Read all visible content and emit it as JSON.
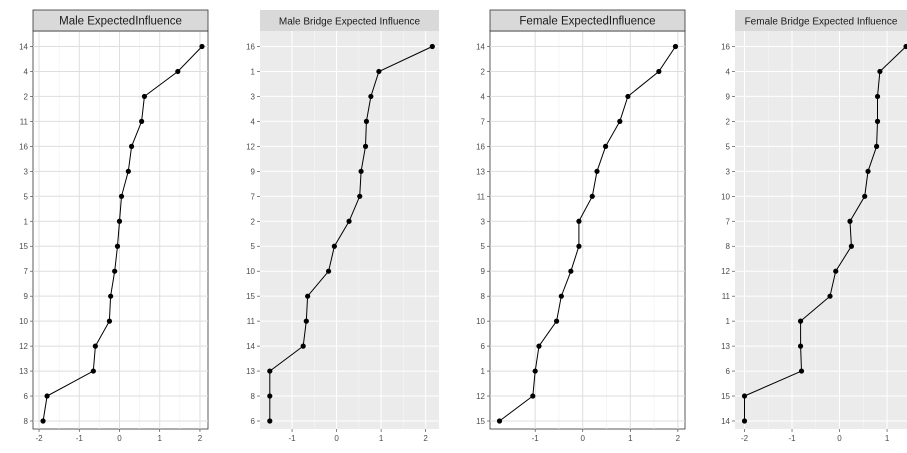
{
  "chart_data": [
    {
      "type": "line",
      "title": "Male ExpectedInfluence",
      "categories": [
        "8",
        "6",
        "13",
        "12",
        "10",
        "9",
        "7",
        "15",
        "1",
        "5",
        "3",
        "16",
        "11",
        "2",
        "4",
        "14"
      ],
      "values": [
        -1.9,
        -1.8,
        -0.65,
        -0.6,
        -0.25,
        -0.22,
        -0.12,
        -0.05,
        0.0,
        0.05,
        0.22,
        0.3,
        0.55,
        0.62,
        1.45,
        2.05
      ],
      "xlim": [
        -2.15,
        2.2
      ],
      "xticks": [
        -2,
        -1,
        0,
        1,
        2
      ],
      "xtick_labels": [
        "-2",
        "-1",
        "0",
        "1",
        "2"
      ],
      "grid": true,
      "panel_bg": "#ffffff",
      "strip_bg": "#d9d9d9"
    },
    {
      "type": "line",
      "title": "Male Bridge Expected Influence",
      "categories": [
        "6",
        "8",
        "13",
        "14",
        "11",
        "15",
        "10",
        "5",
        "2",
        "7",
        "9",
        "12",
        "4",
        "3",
        "1",
        "16"
      ],
      "values": [
        -1.5,
        -1.5,
        -1.5,
        -0.75,
        -0.68,
        -0.65,
        -0.18,
        -0.05,
        0.28,
        0.52,
        0.55,
        0.65,
        0.67,
        0.77,
        0.95,
        2.15
      ],
      "xlim": [
        -1.72,
        2.3
      ],
      "xticks": [
        -1,
        0,
        1,
        2
      ],
      "xtick_labels": [
        "-1",
        "0",
        "1",
        "2"
      ],
      "grid": true,
      "panel_bg": "#ebebeb",
      "strip_bg": "#d9d9d9"
    },
    {
      "type": "line",
      "title": "Female ExpectedInfluence",
      "categories": [
        "15",
        "12",
        "1",
        "6",
        "10",
        "8",
        "9",
        "5",
        "3",
        "11",
        "13",
        "16",
        "7",
        "4",
        "2",
        "14"
      ],
      "values": [
        -1.75,
        -1.05,
        -1.0,
        -0.92,
        -0.55,
        -0.45,
        -0.25,
        -0.08,
        -0.08,
        0.2,
        0.3,
        0.48,
        0.78,
        0.95,
        1.6,
        1.95
      ],
      "xlim": [
        -1.95,
        2.15
      ],
      "xticks": [
        -1,
        0,
        1,
        2
      ],
      "xtick_labels": [
        "-1",
        "0",
        "1",
        "2"
      ],
      "grid": true,
      "panel_bg": "#ffffff",
      "strip_bg": "#d9d9d9"
    },
    {
      "type": "line",
      "title": "Female Bridge Expected Influence",
      "categories": [
        "14",
        "15",
        "6",
        "13",
        "1",
        "11",
        "12",
        "8",
        "7",
        "10",
        "3",
        "5",
        "2",
        "9",
        "4",
        "16"
      ],
      "values": [
        -2.0,
        -2.0,
        -0.8,
        -0.82,
        -0.82,
        -0.2,
        -0.08,
        0.25,
        0.22,
        0.53,
        0.6,
        0.78,
        0.8,
        0.8,
        0.85,
        1.4
      ],
      "xlim": [
        -2.2,
        1.42
      ],
      "xticks": [
        -2,
        -1,
        0,
        1
      ],
      "xtick_labels": [
        "-2",
        "-1",
        "0",
        "1"
      ],
      "grid": true,
      "panel_bg": "#ebebeb",
      "strip_bg": "#d9d9d9"
    }
  ]
}
